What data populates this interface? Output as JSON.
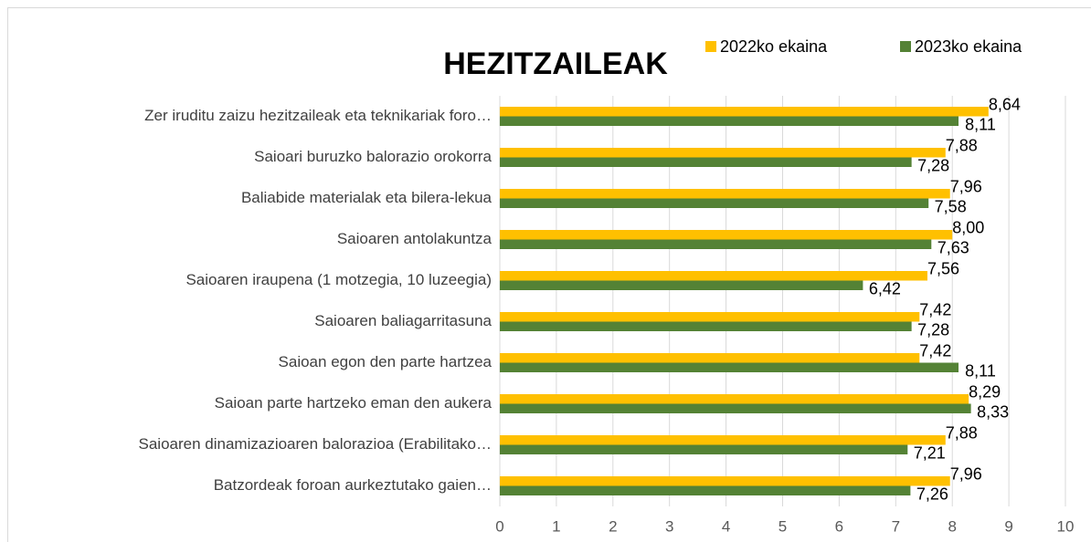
{
  "chart_data": {
    "type": "bar",
    "orientation": "horizontal",
    "title": "HEZITZAILEAK",
    "categories": [
      "Zer iruditu zaizu hezitzaileak eta teknikariak foro…",
      "Saioari buruzko balorazio orokorra",
      "Baliabide materialak eta bilera-lekua",
      "Saioaren antolakuntza",
      "Saioaren iraupena (1 motzegia, 10 luzeegia)",
      "Saioaren baliagarritasuna",
      "Saioan egon den parte hartzea",
      "Saioan parte hartzeko eman den aukera",
      "Saioaren dinamizazioaren balorazioa (Erabilitako…",
      "Batzordeak foroan aurkeztutako gaien…"
    ],
    "series": [
      {
        "name": "2022ko ekaina",
        "color": "#FFC000",
        "values": [
          8.64,
          7.88,
          7.96,
          8.0,
          7.56,
          7.42,
          7.42,
          8.29,
          7.88,
          7.96
        ],
        "value_labels": [
          "8,64",
          "7,88",
          "7,96",
          "8,00",
          "7,56",
          "7,42",
          "7,42",
          "8,29",
          "7,88",
          "7,96"
        ]
      },
      {
        "name": "2023ko ekaina",
        "color": "#548235",
        "values": [
          8.11,
          7.28,
          7.58,
          7.63,
          6.42,
          7.28,
          8.11,
          8.33,
          7.21,
          7.26
        ],
        "value_labels": [
          "8,11",
          "7,28",
          "7,58",
          "7,63",
          "6,42",
          "7,28",
          "8,11",
          "8,33",
          "7,21",
          "7,26"
        ]
      }
    ],
    "xlim": [
      0,
      10
    ],
    "xticks": [
      0,
      1,
      2,
      3,
      4,
      5,
      6,
      7,
      8,
      9,
      10
    ],
    "grid": true,
    "legend": "top"
  }
}
